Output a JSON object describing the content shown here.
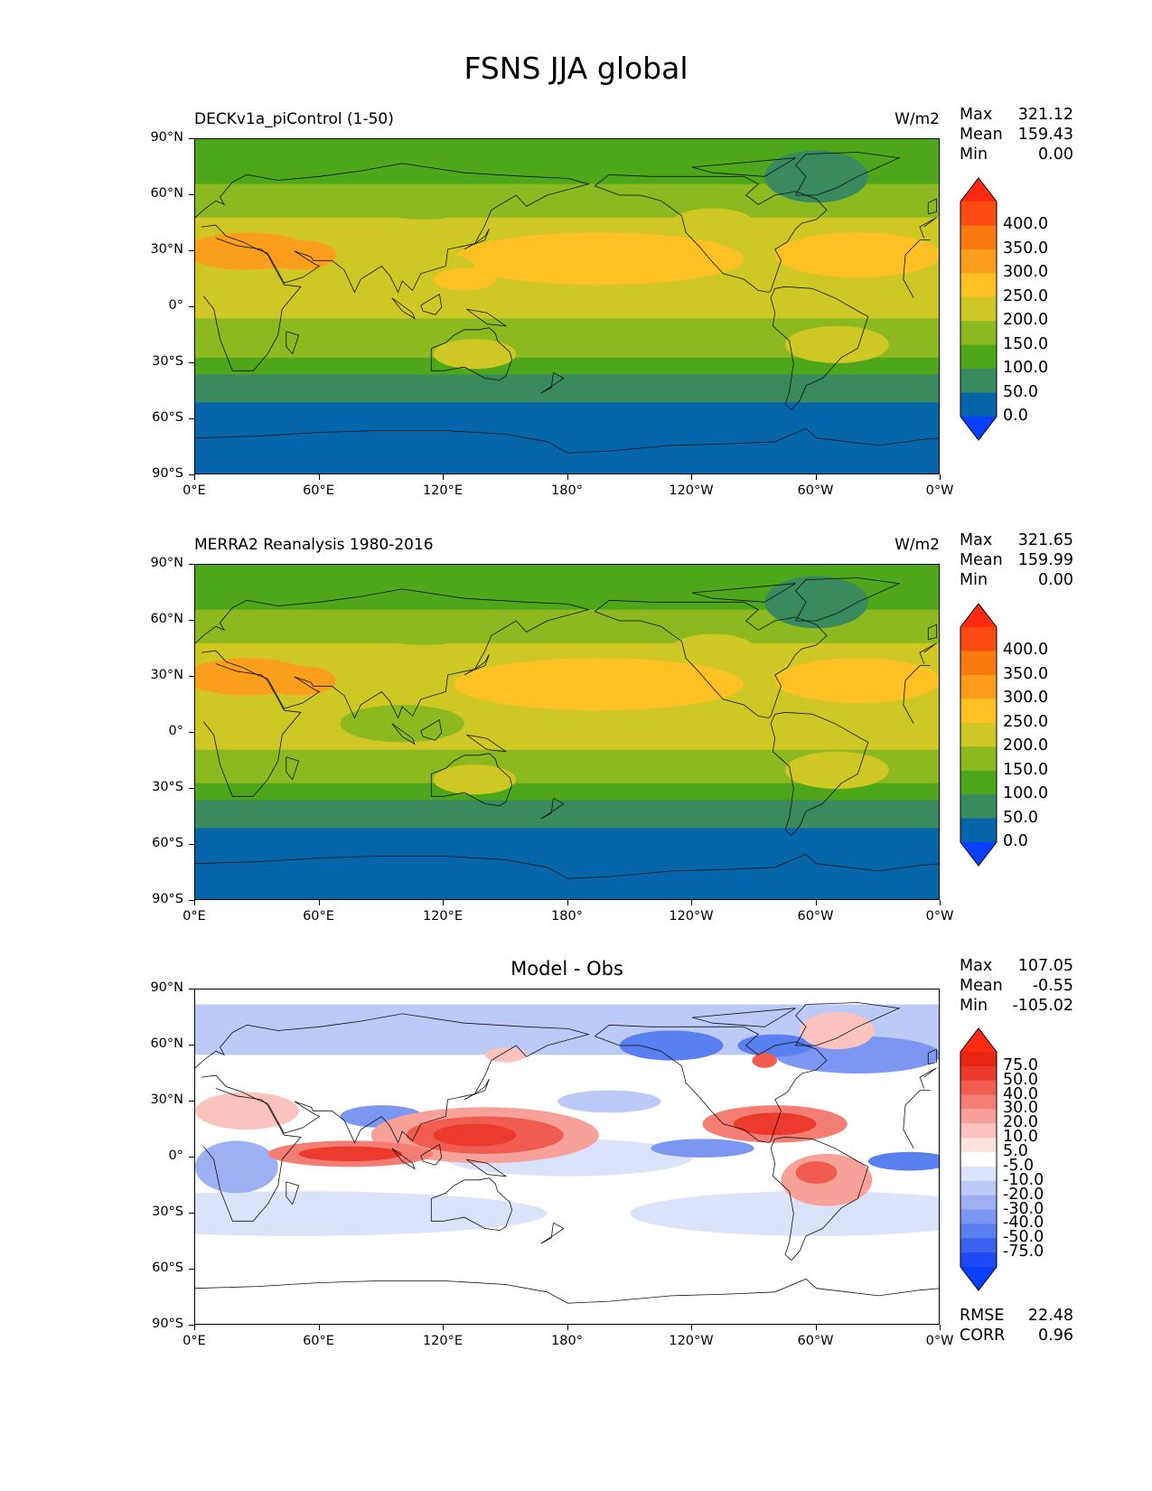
{
  "title": "FSNS JJA global",
  "axes": {
    "y_ticks": [
      "90°N",
      "60°N",
      "30°N",
      "0°",
      "30°S",
      "60°S",
      "90°S"
    ],
    "x_ticks": [
      "0°E",
      "60°E",
      "120°E",
      "180°",
      "120°W",
      "60°W",
      "0°W"
    ]
  },
  "panels": [
    {
      "title": "DECKv1a_piControl (1-50)",
      "units": "W/m2",
      "stats": {
        "max_label": "Max",
        "max": "321.12",
        "mean_label": "Mean",
        "mean": "159.43",
        "min_label": "Min",
        "min": "0.00"
      },
      "colorbar_labels": [
        "400.0",
        "350.0",
        "300.0",
        "250.0",
        "200.0",
        "150.0",
        "100.0",
        "50.0",
        "0.0"
      ],
      "colors": {
        "below": "#0a3fff",
        "bins": [
          "#0565a8",
          "#3a8a60",
          "#4ea61a",
          "#8cb820",
          "#cfc824",
          "#fdc124",
          "#fa9e1c",
          "#f87a10",
          "#fb4a12"
        ],
        "above": "#ff2a10"
      }
    },
    {
      "title": "MERRA2 Reanalysis 1980-2016",
      "units": "W/m2",
      "stats": {
        "max_label": "Max",
        "max": "321.65",
        "mean_label": "Mean",
        "mean": "159.99",
        "min_label": "Min",
        "min": "0.00"
      },
      "colorbar_labels": [
        "400.0",
        "350.0",
        "300.0",
        "250.0",
        "200.0",
        "150.0",
        "100.0",
        "50.0",
        "0.0"
      ],
      "colors": {
        "below": "#0a3fff",
        "bins": [
          "#0565a8",
          "#3a8a60",
          "#4ea61a",
          "#8cb820",
          "#cfc824",
          "#fdc124",
          "#fa9e1c",
          "#f87a10",
          "#fb4a12"
        ],
        "above": "#ff2a10"
      }
    },
    {
      "title": "Model - Obs",
      "units": "",
      "stats": {
        "max_label": "Max",
        "max": "107.05",
        "mean_label": "Mean",
        "mean": "-0.55",
        "min_label": "Min",
        "min": "-105.02"
      },
      "colorbar_labels": [
        "75.0",
        "50.0",
        "40.0",
        "30.0",
        "20.0",
        "10.0",
        "5.0",
        "-5.0",
        "-10.0",
        "-20.0",
        "-30.0",
        "-40.0",
        "-50.0",
        "-75.0"
      ],
      "colors": {
        "below": "#0a3fff",
        "above": "#ff2a10",
        "bins": [
          "#1e4af5",
          "#3a62ee",
          "#5a7ff0",
          "#7c97f2",
          "#9db0f4",
          "#bccaf7",
          "#dbe3fb",
          "#ffffff",
          "#fde2df",
          "#fbc3bd",
          "#f7a199",
          "#f47e75",
          "#f05c50",
          "#ec3a2c",
          "#e82412"
        ]
      },
      "footer": {
        "rmse_label": "RMSE",
        "rmse": "22.48",
        "corr_label": "CORR",
        "corr": "0.96"
      }
    }
  ],
  "chart_data": [
    {
      "type": "heatmap",
      "title": "DECKv1a_piControl (1-50)",
      "units": "W/m2",
      "x_range": [
        0,
        360
      ],
      "y_range": [
        -90,
        90
      ],
      "contour_levels": [
        0,
        50,
        100,
        150,
        200,
        250,
        300,
        350,
        400
      ],
      "zonal_profile": [
        {
          "lat": 90,
          "value": 110
        },
        {
          "lat": 75,
          "value": 120
        },
        {
          "lat": 60,
          "value": 165
        },
        {
          "lat": 45,
          "value": 205
        },
        {
          "lat": 30,
          "value": 250
        },
        {
          "lat": 15,
          "value": 240
        },
        {
          "lat": 0,
          "value": 205
        },
        {
          "lat": -15,
          "value": 190
        },
        {
          "lat": -30,
          "value": 135
        },
        {
          "lat": -40,
          "value": 85
        },
        {
          "lat": -60,
          "value": 25
        },
        {
          "lat": -85,
          "value": 0
        }
      ],
      "stats": {
        "max": 321.12,
        "mean": 159.43,
        "min": 0.0
      }
    },
    {
      "type": "heatmap",
      "title": "MERRA2 Reanalysis 1980-2016",
      "units": "W/m2",
      "x_range": [
        0,
        360
      ],
      "y_range": [
        -90,
        90
      ],
      "contour_levels": [
        0,
        50,
        100,
        150,
        200,
        250,
        300,
        350,
        400
      ],
      "zonal_profile": [
        {
          "lat": 90,
          "value": 110
        },
        {
          "lat": 75,
          "value": 125
        },
        {
          "lat": 60,
          "value": 170
        },
        {
          "lat": 45,
          "value": 210
        },
        {
          "lat": 30,
          "value": 245
        },
        {
          "lat": 15,
          "value": 215
        },
        {
          "lat": 0,
          "value": 205
        },
        {
          "lat": -15,
          "value": 195
        },
        {
          "lat": -30,
          "value": 140
        },
        {
          "lat": -40,
          "value": 85
        },
        {
          "lat": -60,
          "value": 25
        },
        {
          "lat": -85,
          "value": 0
        }
      ],
      "stats": {
        "max": 321.65,
        "mean": 159.99,
        "min": 0.0
      }
    },
    {
      "type": "heatmap",
      "title": "Model - Obs",
      "x_range": [
        0,
        360
      ],
      "y_range": [
        -90,
        90
      ],
      "contour_levels": [
        -75,
        -50,
        -40,
        -30,
        -20,
        -10,
        -5,
        5,
        10,
        20,
        30,
        40,
        50,
        75
      ],
      "stats": {
        "max": 107.05,
        "mean": -0.55,
        "min": -105.02,
        "rmse": 22.48,
        "corr": 0.96
      }
    }
  ]
}
